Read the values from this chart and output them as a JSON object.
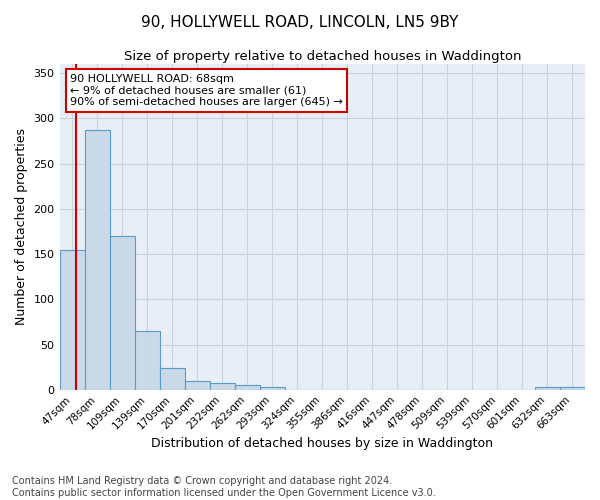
{
  "title": "90, HOLLYWELL ROAD, LINCOLN, LN5 9BY",
  "subtitle": "Size of property relative to detached houses in Waddington",
  "xlabel": "Distribution of detached houses by size in Waddington",
  "ylabel": "Number of detached properties",
  "bin_labels": [
    "47sqm",
    "78sqm",
    "109sqm",
    "139sqm",
    "170sqm",
    "201sqm",
    "232sqm",
    "262sqm",
    "293sqm",
    "324sqm",
    "355sqm",
    "386sqm",
    "416sqm",
    "447sqm",
    "478sqm",
    "509sqm",
    "539sqm",
    "570sqm",
    "601sqm",
    "632sqm",
    "663sqm"
  ],
  "bar_heights": [
    155,
    287,
    170,
    65,
    24,
    10,
    7,
    5,
    3,
    0,
    0,
    0,
    0,
    0,
    0,
    0,
    0,
    0,
    0,
    3,
    3
  ],
  "bar_color": "#c9d9e8",
  "bar_edge_color": "#5a9bc9",
  "annotation_title": "90 HOLLYWELL ROAD: 68sqm",
  "annotation_line1": "← 9% of detached houses are smaller (61)",
  "annotation_line2": "90% of semi-detached houses are larger (645) →",
  "annotation_box_color": "#ffffff",
  "annotation_box_edge": "#cc0000",
  "red_line_color": "#cc0000",
  "ylim": [
    0,
    360
  ],
  "yticks": [
    0,
    50,
    100,
    150,
    200,
    250,
    300,
    350
  ],
  "grid_color": "#c8d4e0",
  "bg_color": "#e8eef5",
  "footer": "Contains HM Land Registry data © Crown copyright and database right 2024.\nContains public sector information licensed under the Open Government Licence v3.0.",
  "title_fontsize": 11,
  "subtitle_fontsize": 9.5,
  "xlabel_fontsize": 9,
  "ylabel_fontsize": 9,
  "footer_fontsize": 7,
  "annot_fontsize": 8,
  "tick_fontsize": 7.5,
  "ytick_fontsize": 8
}
